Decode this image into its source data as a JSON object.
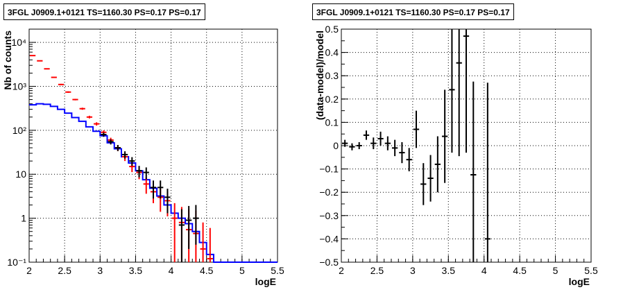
{
  "charts": {
    "left": {
      "title": "3FGL J0909.1+0121 TS=1160.30 PS=0.17 PS=0.17"
    },
    "right": {
      "title": "3FGL J0909.1+0121 TS=1160.30 PS=0.17 PS=0.17"
    }
  },
  "chart_data": [
    {
      "type": "histogram",
      "title": "3FGL J0909.1+0121 TS=1160.30 PS=0.17 PS=0.17",
      "xlabel": "logE",
      "ylabel": "Nb of counts",
      "xlim": [
        2,
        5.5
      ],
      "ylim": [
        0.1,
        20000
      ],
      "yscale": "log",
      "grid": true,
      "xticks": [
        "2",
        "2.5",
        "3",
        "3.5",
        "4",
        "4.5",
        "5",
        "5.5"
      ],
      "yticks": [
        {
          "value": 0.1,
          "label": "10⁻¹"
        },
        {
          "value": 1,
          "label": "1"
        },
        {
          "value": 10,
          "label": "10"
        },
        {
          "value": 100,
          "label": "10²"
        },
        {
          "value": 1000,
          "label": "10³"
        },
        {
          "value": 10000,
          "label": "10⁴"
        }
      ],
      "bin_width": 0.1,
      "series": [
        {
          "color": "#0000ff",
          "style": "step",
          "x": [
            2.05,
            2.15,
            2.25,
            2.35,
            2.45,
            2.55,
            2.65,
            2.75,
            2.85,
            2.95,
            3.05,
            3.15,
            3.25,
            3.35,
            3.45,
            3.55,
            3.65,
            3.75,
            3.85,
            3.95,
            4.05,
            4.15,
            4.25,
            4.35,
            4.45,
            4.55,
            4.65,
            4.75,
            4.85,
            4.95,
            5.05,
            5.15,
            5.25,
            5.35,
            5.45
          ],
          "y": [
            380,
            400,
            390,
            350,
            300,
            245,
            195,
            160,
            120,
            95,
            75,
            52,
            38,
            25,
            18,
            12,
            7.5,
            4.8,
            3.2,
            2,
            1.3,
            1,
            0.75,
            0.5,
            0.28,
            0.15,
            0.1,
            0.1,
            0.1,
            0.1,
            0.1,
            0.1,
            0.1,
            0.1,
            0.1
          ]
        },
        {
          "color": "#ff0000",
          "style": "errorbar",
          "x": [
            2.05,
            2.15,
            2.25,
            2.35,
            2.45,
            2.55,
            2.65,
            2.75,
            2.85,
            2.95,
            3.05,
            3.15,
            3.25,
            3.35,
            3.45,
            3.55,
            3.65,
            3.75,
            3.85,
            3.95,
            4.05,
            4.15,
            4.25,
            4.35,
            4.45,
            4.55
          ],
          "y": [
            5000,
            3800,
            2500,
            1600,
            1100,
            740,
            500,
            310,
            200,
            140,
            90,
            60,
            40,
            25,
            15,
            11,
            6,
            4,
            3,
            2.5,
            1,
            0.8,
            0.55,
            0.45,
            0.2,
            0.12
          ],
          "lo": [
            4900,
            3700,
            2430,
            1550,
            1060,
            710,
            480,
            293,
            186,
            128,
            80.5,
            52.3,
            33.7,
            20,
            11.2,
            7.7,
            3.6,
            2.2,
            1.4,
            1.1,
            0.1,
            0.1,
            0.1,
            0.1,
            0.1,
            0.1
          ],
          "hi": [
            5100,
            3900,
            2570,
            1650,
            1140,
            770,
            520,
            327,
            214,
            152,
            99.5,
            67.7,
            46.3,
            30,
            18.8,
            14.3,
            8.4,
            6,
            4.7,
            4,
            2.2,
            1.8,
            1.6,
            1.5,
            0.8,
            0.6
          ]
        },
        {
          "color": "#000000",
          "style": "errorbar",
          "x": [
            3.05,
            3.15,
            3.25,
            3.35,
            3.45,
            3.55,
            3.65,
            3.75,
            3.85,
            3.95,
            4.15,
            4.25,
            4.35
          ],
          "y": [
            80,
            55,
            40,
            28,
            20,
            12,
            11,
            5,
            5,
            3,
            0.7,
            0.9,
            1
          ],
          "lo": [
            71,
            47.6,
            33.7,
            22.7,
            15.5,
            8.5,
            7.7,
            2.8,
            2.8,
            1.3,
            0.1,
            0.2,
            0.25
          ],
          "hi": [
            89,
            62.4,
            46.3,
            33.3,
            24.5,
            15.5,
            14.3,
            7.2,
            7.2,
            4.7,
            1.6,
            1.9,
            2
          ]
        }
      ]
    },
    {
      "type": "errorbar",
      "title": "3FGL J0909.1+0121 TS=1160.30 PS=0.17 PS=0.17",
      "xlabel": "logE",
      "ylabel": "(data-model)/model",
      "xlim": [
        2,
        5.5
      ],
      "ylim": [
        -0.5,
        0.5
      ],
      "grid": true,
      "xticks": [
        "2",
        "2.5",
        "3",
        "3.5",
        "4",
        "4.5",
        "5",
        "5.5"
      ],
      "yticks": [
        {
          "value": -0.5,
          "label": "−0.5"
        },
        {
          "value": -0.4,
          "label": "−0.4"
        },
        {
          "value": -0.3,
          "label": "−0.3"
        },
        {
          "value": -0.2,
          "label": "−0.2"
        },
        {
          "value": -0.1,
          "label": "−0.1"
        },
        {
          "value": 0,
          "label": "0"
        },
        {
          "value": 0.1,
          "label": "0.1"
        },
        {
          "value": 0.2,
          "label": "0.2"
        },
        {
          "value": 0.3,
          "label": "0.3"
        },
        {
          "value": 0.4,
          "label": "0.4"
        },
        {
          "value": 0.5,
          "label": "0.5"
        }
      ],
      "bin_width": 0.1,
      "series": [
        {
          "color": "#000000",
          "x": [
            2.05,
            2.15,
            2.25,
            2.35,
            2.45,
            2.55,
            2.65,
            2.75,
            2.85,
            2.95,
            3.05,
            3.15,
            3.25,
            3.35,
            3.45,
            3.55,
            3.65,
            3.75,
            3.85,
            4.05
          ],
          "y": [
            0.01,
            -0.005,
            0.0,
            0.045,
            0.01,
            0.03,
            0.01,
            -0.01,
            -0.03,
            -0.06,
            0.07,
            -0.165,
            -0.14,
            -0.08,
            0.04,
            0.24,
            0.355,
            0.47,
            -0.125,
            -0.4
          ],
          "err": [
            0.015,
            0.015,
            0.015,
            0.02,
            0.025,
            0.03,
            0.03,
            0.035,
            0.045,
            0.05,
            0.08,
            0.09,
            0.1,
            0.12,
            0.2,
            0.27,
            0.4,
            0.5,
            0.4,
            0.67
          ]
        }
      ]
    }
  ]
}
